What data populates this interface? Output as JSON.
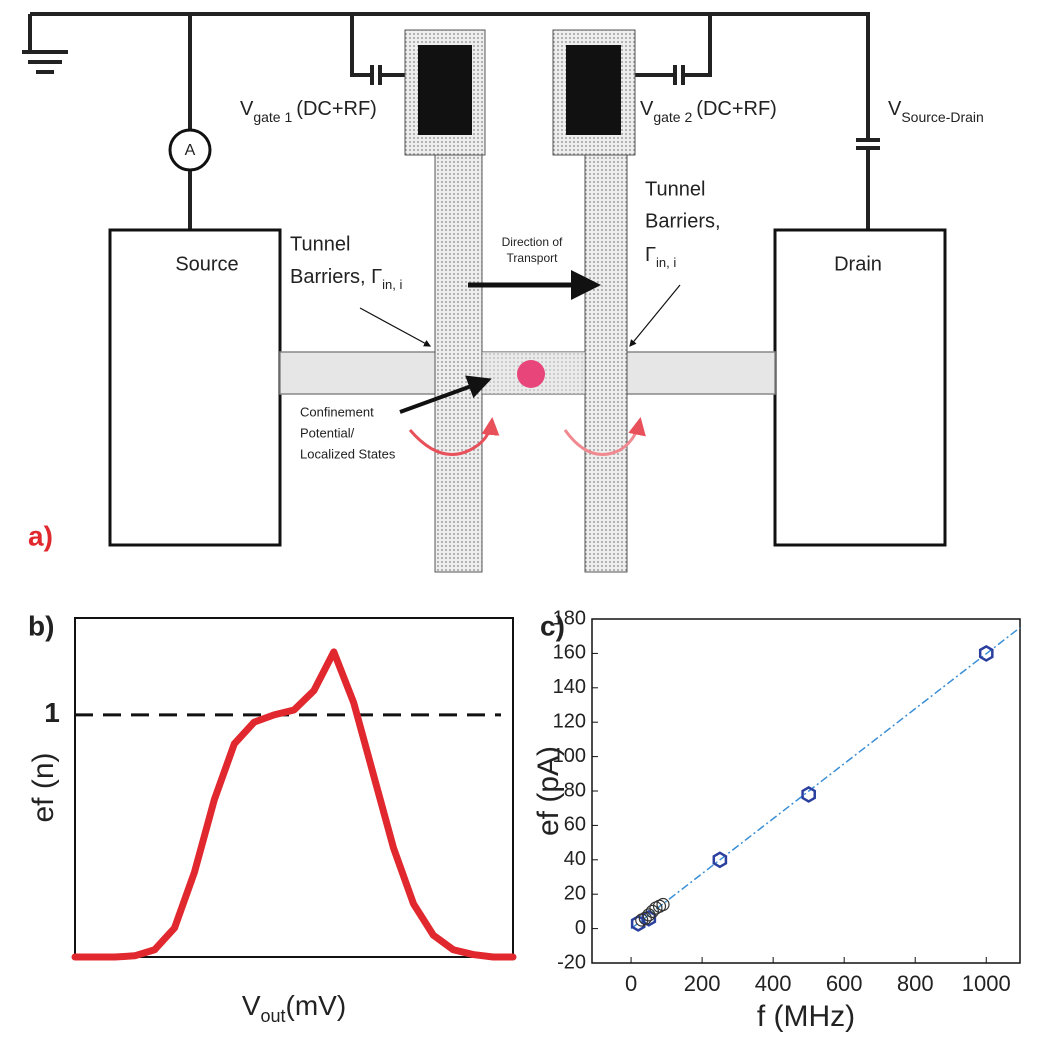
{
  "diagram": {
    "label": "a)",
    "source": "Source",
    "drain": "Drain",
    "ammeter": "A",
    "gate1": {
      "main": "V",
      "sub": "gate 1",
      "suffix": "(DC+RF)"
    },
    "gate2": {
      "main": "V",
      "sub": "gate 2",
      "suffix": "(DC+RF)"
    },
    "source_drain": {
      "main": "V",
      "sub": "Source-Drain"
    },
    "tunnel_left": {
      "line1": "Tunnel",
      "line2": "Barriers, Γ",
      "sub": "in, i"
    },
    "tunnel_right": {
      "line1": "Tunnel",
      "line2": "Barriers,",
      "line3": "Γ",
      "sub": "in, i"
    },
    "direction": {
      "line1": "Direction of",
      "line2": "Transport"
    },
    "confinement": {
      "line1": "Confinement",
      "line2": "Potential/",
      "line3": "Localized States"
    }
  },
  "chart_data": [
    {
      "type": "line",
      "label": "b)",
      "ylabel": "ef (n)",
      "xlabel": {
        "main": "V",
        "sub": "out",
        "unit": "(mV)"
      },
      "values": [
        0,
        0,
        0,
        0.005,
        0.03,
        0.12,
        0.35,
        0.65,
        0.88,
        0.97,
        1.0,
        1.02,
        1.1,
        1.26,
        1.05,
        0.75,
        0.45,
        0.22,
        0.09,
        0.03,
        0.01,
        0,
        0
      ],
      "color": "#e0282e",
      "ylim": [
        0,
        1.4
      ],
      "yticks": [
        1
      ],
      "grid": true
    },
    {
      "type": "scatter",
      "label": "c)",
      "ylabel": "ef (pA)",
      "xlabel": "f (MHz)",
      "xlim": [
        -110,
        1095
      ],
      "ylim": [
        -20,
        180
      ],
      "xticks": [
        0,
        200,
        400,
        600,
        800,
        1000
      ],
      "yticks": [
        -20,
        0,
        20,
        40,
        60,
        80,
        100,
        120,
        140,
        160,
        180
      ],
      "series": [
        {
          "marker": "hexagon",
          "color": "#2a3f9e",
          "x": [
            20,
            50,
            250,
            500,
            1000
          ],
          "values": [
            3,
            6,
            40,
            78,
            160
          ]
        },
        {
          "marker": "circle",
          "color": "#333333",
          "x": [
            30,
            40,
            50,
            60,
            70,
            80,
            90
          ],
          "values": [
            5,
            6,
            8,
            10,
            12,
            13,
            14
          ]
        }
      ],
      "fit": {
        "color": "#3a8fd6",
        "x": [
          0,
          1095
        ],
        "values": [
          0,
          175
        ]
      }
    }
  ]
}
